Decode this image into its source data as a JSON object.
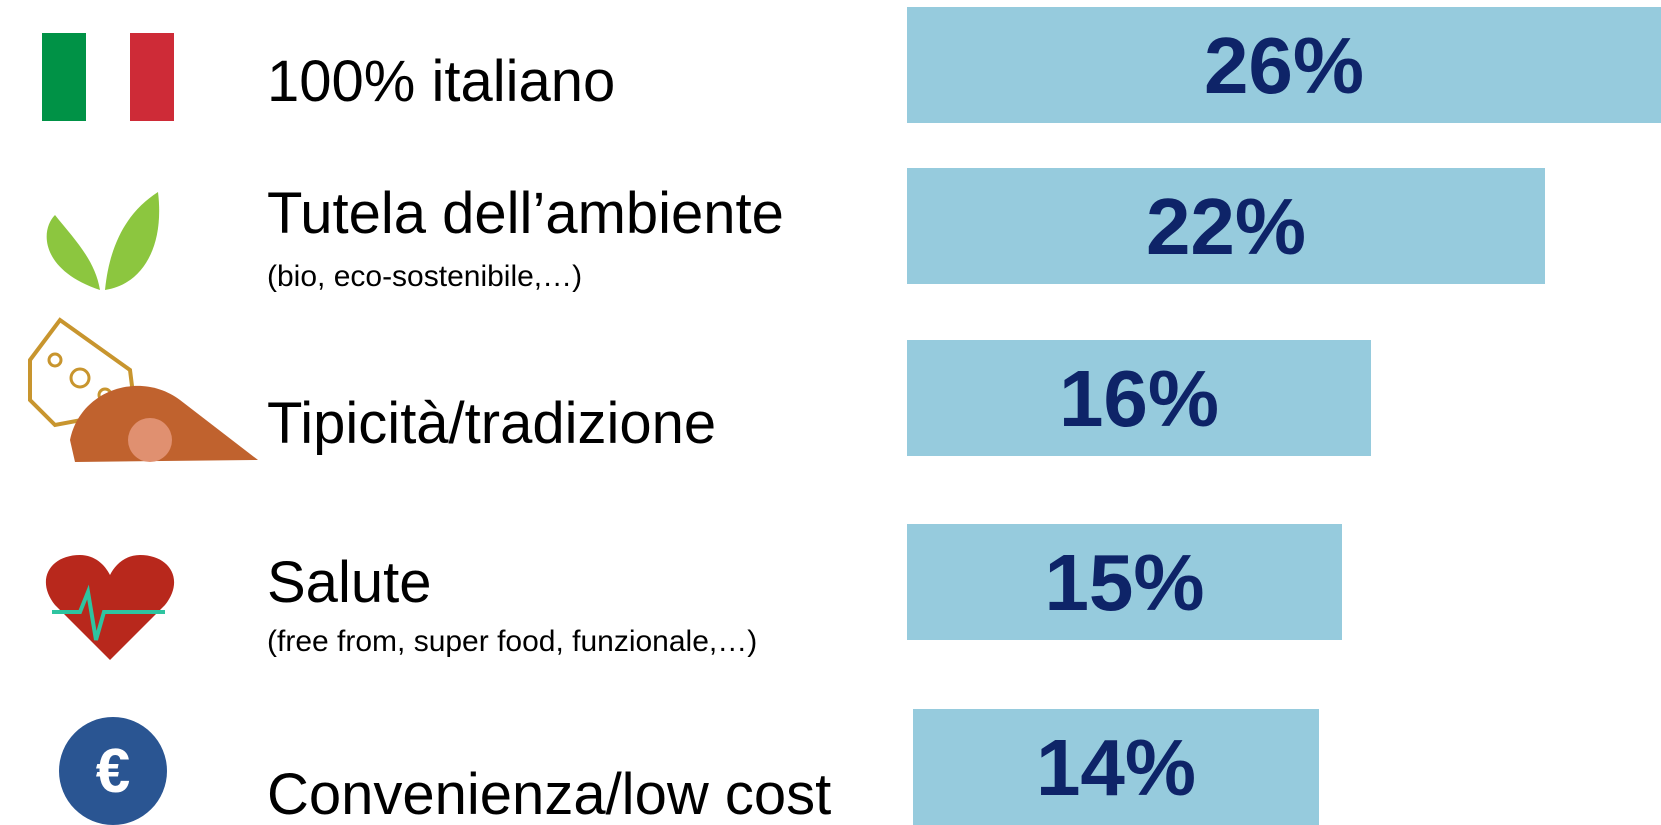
{
  "chart_data": {
    "type": "bar",
    "categories": [
      "100% italiano",
      "Tutela dell’ambiente",
      "Tipicità/tradizione",
      "Salute",
      "Convenienza/low cost"
    ],
    "subtitles": [
      null,
      "(bio, eco-sostenibile,…)",
      null,
      "(free from, super food, funzionale,…)",
      null
    ],
    "values": [
      26,
      22,
      16,
      15,
      14
    ],
    "value_labels": [
      "26%",
      "22%",
      "16%",
      "15%",
      "14%"
    ],
    "color": "#96cbdd"
  }
}
